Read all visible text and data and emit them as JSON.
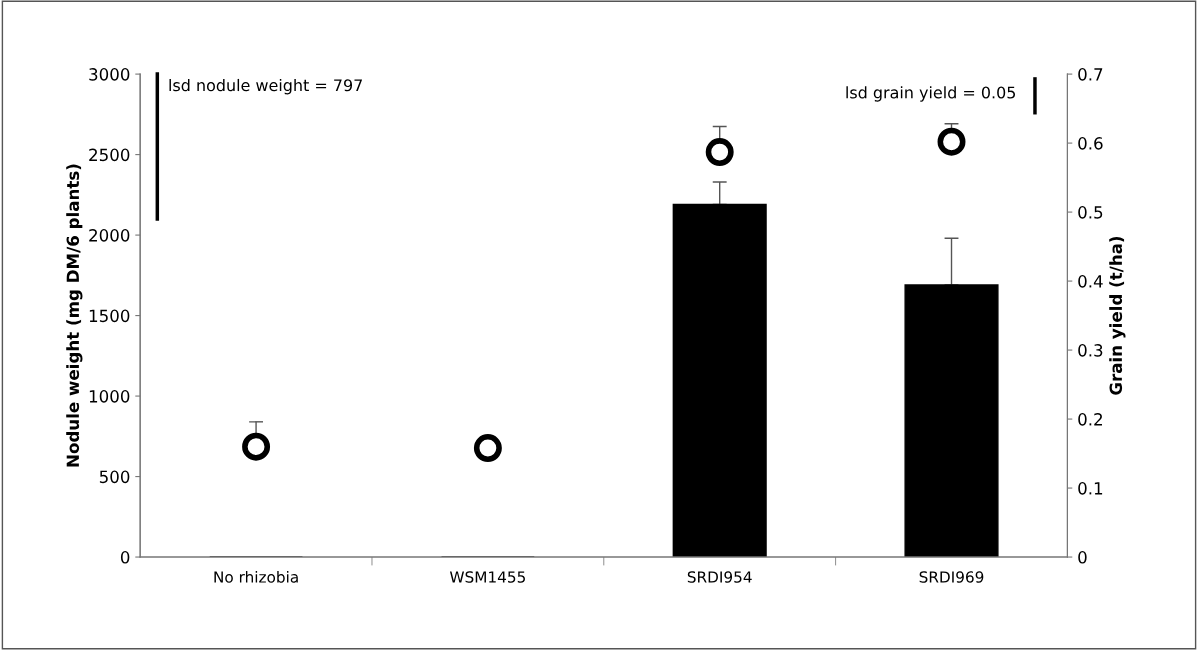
{
  "chart_data": {
    "type": "bar",
    "categories": [
      "No rhizobia",
      "WSM1455",
      "SRDI954",
      "SRDI969"
    ],
    "ylabel": "Nodule weight (mg DM/6 plants)",
    "y2label": "Grain yield (t/ha)",
    "ylim": [
      0,
      3000
    ],
    "yticks": [
      0,
      500,
      1000,
      1500,
      2000,
      2500,
      3000
    ],
    "y2lim": [
      0,
      0.7
    ],
    "y2ticks": [
      0,
      0.1,
      0.2,
      0.3,
      0.4,
      0.5,
      0.6,
      0.7
    ],
    "series": [
      {
        "color": "#000000",
        "values": [
          0,
          0,
          2190,
          1690
        ],
        "errors": [
          null,
          null,
          [
            2190,
            2330
          ],
          [
            1690,
            1980
          ]
        ]
      },
      {
        "type": "scatter",
        "axis": "y2",
        "color": "#000000",
        "marker": "circle",
        "values": [
          0.16,
          0.158,
          0.587,
          0.602
        ],
        "errors": [
          [
            0.16,
            0.196
          ],
          null,
          [
            0.587,
            0.624
          ],
          [
            0.602,
            0.628
          ]
        ]
      }
    ],
    "annotations": [
      "lsd nodule weight = 797",
      "lsd grain yield = 0.05"
    ],
    "grid": false
  }
}
